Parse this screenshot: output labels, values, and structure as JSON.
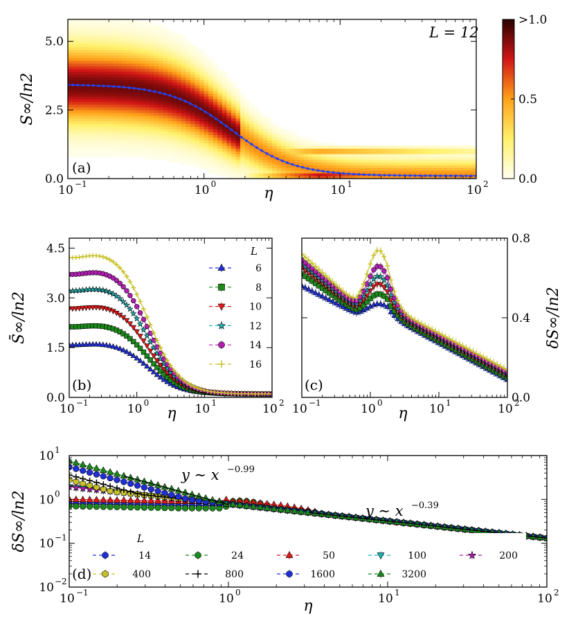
{
  "chart_data": [
    {
      "id": "a",
      "type": "heatmap",
      "panel_label": "(a)",
      "annotation": "L = 12",
      "xlabel": "η",
      "ylabel": "S∞/ln2",
      "xscale": "log",
      "xlim": [
        0.1,
        100
      ],
      "ylim": [
        0,
        5.8
      ],
      "xticks": [
        {
          "v": 0.1,
          "t": "10"
        },
        {
          "v": 1,
          "t": "10"
        },
        {
          "v": 10,
          "t": "10"
        },
        {
          "v": 100,
          "t": "10"
        }
      ],
      "xtick_exp": [
        "−1",
        "0",
        "1",
        "2"
      ],
      "yticks": [
        {
          "v": 0,
          "t": "0.0"
        },
        {
          "v": 2.5,
          "t": "2.5"
        },
        {
          "v": 5,
          "t": "5.0"
        }
      ],
      "colorbar": {
        "ticks": [
          {
            "v": 0,
            "t": "0.0"
          },
          {
            "v": 0.5,
            "t": "0.5"
          },
          {
            "v": 1,
            "t": ">1.0"
          }
        ]
      },
      "mean_curve": {
        "plateau": 3.43,
        "eta_c": 1.6,
        "power": 1.9,
        "floor": 0.1,
        "color": "#2244ee"
      }
    },
    {
      "id": "b",
      "type": "line",
      "panel_label": "(b)",
      "xlabel": "η",
      "ylabel": "S̄∞/ln2",
      "xscale": "log",
      "xlim": [
        0.1,
        100
      ],
      "ylim": [
        0,
        4.8
      ],
      "yticks": [
        {
          "v": 0,
          "t": "0.0"
        },
        {
          "v": 1.5,
          "t": "1.5"
        },
        {
          "v": 3,
          "t": "3.0"
        },
        {
          "v": 4.5,
          "t": "4.5"
        }
      ],
      "legend_title": "L",
      "series": [
        {
          "name": "6",
          "plateau": 1.68,
          "color": "#1f2fd6",
          "marker": "tri-up"
        },
        {
          "name": "8",
          "plateau": 2.27,
          "color": "#1b8a1b",
          "marker": "square"
        },
        {
          "name": "10",
          "plateau": 2.86,
          "color": "#e01818",
          "marker": "tri-down"
        },
        {
          "name": "12",
          "plateau": 3.43,
          "color": "#1eb4b4",
          "marker": "star"
        },
        {
          "name": "14",
          "plateau": 3.96,
          "color": "#b21eb2",
          "marker": "circle"
        },
        {
          "name": "16",
          "plateau": 4.5,
          "color": "#c7c22a",
          "marker": "plus"
        }
      ]
    },
    {
      "id": "c",
      "type": "line",
      "panel_label": "(c)",
      "xlabel": "η",
      "ylabel": "δS∞/ln2",
      "xscale": "log",
      "xlim": [
        0.1,
        100
      ],
      "ylim": [
        0,
        0.8
      ],
      "yticks": [
        {
          "v": 0,
          "t": "0.0"
        },
        {
          "v": 0.4,
          "t": "0.4"
        },
        {
          "v": 0.8,
          "t": "0.8"
        }
      ],
      "series": [
        {
          "name": "6",
          "start": 0.56,
          "dip": 0.42,
          "peak": 0.47,
          "color": "#1f2fd6",
          "marker": "tri-up"
        },
        {
          "name": "8",
          "start": 0.62,
          "dip": 0.43,
          "peak": 0.52,
          "color": "#1b8a1b",
          "marker": "square"
        },
        {
          "name": "10",
          "start": 0.65,
          "dip": 0.44,
          "peak": 0.57,
          "color": "#e01818",
          "marker": "tri-down"
        },
        {
          "name": "12",
          "start": 0.67,
          "dip": 0.45,
          "peak": 0.61,
          "color": "#1eb4b4",
          "marker": "star"
        },
        {
          "name": "14",
          "start": 0.69,
          "dip": 0.46,
          "peak": 0.66,
          "color": "#b21eb2",
          "marker": "circle"
        },
        {
          "name": "16",
          "start": 0.72,
          "dip": 0.47,
          "peak": 0.74,
          "color": "#c7c22a",
          "marker": "plus"
        }
      ]
    },
    {
      "id": "d",
      "type": "line",
      "panel_label": "(d)",
      "xlabel": "η",
      "ylabel": "δS∞/ln2",
      "xscale": "log",
      "yscale": "log",
      "xlim": [
        0.1,
        100
      ],
      "ylim": [
        0.01,
        10
      ],
      "legend_title": "L",
      "fits": [
        {
          "label": "y ∼ x",
          "exp": "−0.99",
          "x0": 0.22,
          "x1": 1.0,
          "y0": 3.4,
          "slope": -0.99
        },
        {
          "label": "y ∼ x",
          "exp": "−0.39",
          "x0": 3.2,
          "x1": 100,
          "y0": 0.5,
          "slope": -0.39
        }
      ],
      "series": [
        {
          "name": "14",
          "start": 0.8,
          "color": "#1f2fd6",
          "marker": "circle"
        },
        {
          "name": "24",
          "start": 0.7,
          "color": "#1b8a1b",
          "marker": "circle"
        },
        {
          "name": "50",
          "start": 1.0,
          "color": "#e01818",
          "marker": "tri-up"
        },
        {
          "name": "100",
          "start": 1.3,
          "color": "#1eb4b4",
          "marker": "tri-down"
        },
        {
          "name": "200",
          "start": 1.9,
          "color": "#b21eb2",
          "marker": "star"
        },
        {
          "name": "400",
          "start": 2.8,
          "color": "#c7c22a",
          "marker": "hexagon"
        },
        {
          "name": "800",
          "start": 3.6,
          "color": "#000000",
          "marker": "plus"
        },
        {
          "name": "1600",
          "start": 5.5,
          "color": "#1f2fd6",
          "marker": "circle"
        },
        {
          "name": "3200",
          "start": 7.5,
          "color": "#1b8a1b",
          "marker": "tri-up"
        }
      ]
    }
  ]
}
